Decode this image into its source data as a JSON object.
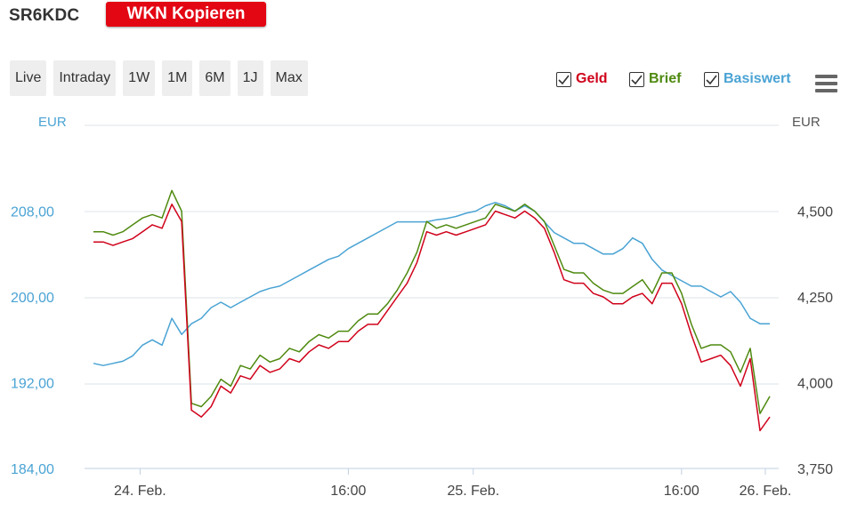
{
  "header": {
    "wkn": "SR6KDC",
    "copy_button": "WKN Kopieren"
  },
  "range_buttons": [
    "Live",
    "Intraday",
    "1W",
    "1M",
    "6M",
    "1J",
    "Max"
  ],
  "legend": [
    {
      "label": "Geld",
      "color": "#d0021b",
      "checked": true
    },
    {
      "label": "Brief",
      "color": "#4f8a10",
      "checked": true
    },
    {
      "label": "Basiswert",
      "color": "#4aa3d4",
      "checked": true
    }
  ],
  "chart_data": {
    "type": "line",
    "left_axis": {
      "unit": "EUR",
      "ticks": [
        "208,00",
        "200,00",
        "192,00",
        "184,00"
      ],
      "tick_values": [
        208,
        200,
        192,
        184
      ],
      "range": [
        184,
        216
      ],
      "color": "#4aa3d4"
    },
    "right_axis": {
      "unit": "EUR",
      "ticks": [
        "4,500",
        "4,250",
        "4,000",
        "3,750"
      ],
      "tick_values": [
        4.5,
        4.25,
        4.0,
        3.75
      ],
      "range": [
        3.75,
        4.75
      ]
    },
    "x_ticks": [
      "24. Feb.",
      "16:00",
      "25. Feb.",
      "16:00",
      "26. Feb."
    ],
    "x_tick_pos": [
      0.08,
      0.38,
      0.56,
      0.86,
      1.0
    ],
    "grid": true,
    "series": [
      {
        "name": "Geld",
        "axis": "right",
        "color": "#d0021b",
        "values": [
          4.41,
          4.41,
          4.4,
          4.41,
          4.42,
          4.44,
          4.46,
          4.45,
          4.52,
          4.47,
          3.92,
          3.9,
          3.93,
          3.99,
          3.97,
          4.02,
          4.01,
          4.05,
          4.03,
          4.04,
          4.07,
          4.06,
          4.09,
          4.11,
          4.1,
          4.12,
          4.12,
          4.15,
          4.17,
          4.17,
          4.21,
          4.25,
          4.29,
          4.35,
          4.44,
          4.43,
          4.44,
          4.43,
          4.44,
          4.45,
          4.46,
          4.5,
          4.49,
          4.48,
          4.5,
          4.48,
          4.45,
          4.38,
          4.3,
          4.29,
          4.29,
          4.26,
          4.25,
          4.23,
          4.23,
          4.25,
          4.26,
          4.23,
          4.29,
          4.29,
          4.23,
          4.14,
          4.06,
          4.07,
          4.08,
          4.05,
          3.99,
          4.07,
          3.86,
          3.9
        ]
      },
      {
        "name": "Brief",
        "axis": "right",
        "color": "#4f8a10",
        "values": [
          4.44,
          4.44,
          4.43,
          4.44,
          4.46,
          4.48,
          4.49,
          4.48,
          4.56,
          4.5,
          3.94,
          3.93,
          3.96,
          4.01,
          3.99,
          4.05,
          4.04,
          4.08,
          4.06,
          4.07,
          4.1,
          4.09,
          4.12,
          4.14,
          4.13,
          4.15,
          4.15,
          4.18,
          4.2,
          4.2,
          4.23,
          4.27,
          4.32,
          4.38,
          4.47,
          4.45,
          4.46,
          4.45,
          4.46,
          4.47,
          4.48,
          4.52,
          4.51,
          4.5,
          4.52,
          4.5,
          4.47,
          4.4,
          4.33,
          4.32,
          4.32,
          4.29,
          4.27,
          4.26,
          4.26,
          4.28,
          4.3,
          4.26,
          4.32,
          4.32,
          4.26,
          4.17,
          4.1,
          4.11,
          4.11,
          4.09,
          4.03,
          4.1,
          3.91,
          3.96
        ]
      },
      {
        "name": "Basiswert",
        "axis": "left",
        "color": "#4aa3d4",
        "values": [
          193.8,
          193.6,
          193.8,
          194.0,
          194.5,
          195.5,
          196.0,
          195.5,
          198.0,
          196.5,
          197.5,
          198.0,
          199.0,
          199.5,
          199.0,
          199.5,
          200.0,
          200.5,
          200.8,
          201.0,
          201.5,
          202.0,
          202.5,
          203.0,
          203.5,
          203.8,
          204.5,
          205.0,
          205.5,
          206.0,
          206.5,
          207.0,
          207.0,
          207.0,
          207.0,
          207.2,
          207.3,
          207.5,
          207.8,
          208.0,
          208.5,
          208.8,
          208.5,
          208.0,
          208.5,
          208.0,
          207.0,
          206.0,
          205.5,
          205.0,
          205.0,
          204.5,
          204.0,
          204.0,
          204.5,
          205.5,
          205.0,
          203.5,
          202.5,
          202.0,
          201.5,
          201.0,
          201.0,
          200.5,
          200.0,
          200.5,
          199.5,
          198.0,
          197.5,
          197.5
        ]
      }
    ]
  }
}
